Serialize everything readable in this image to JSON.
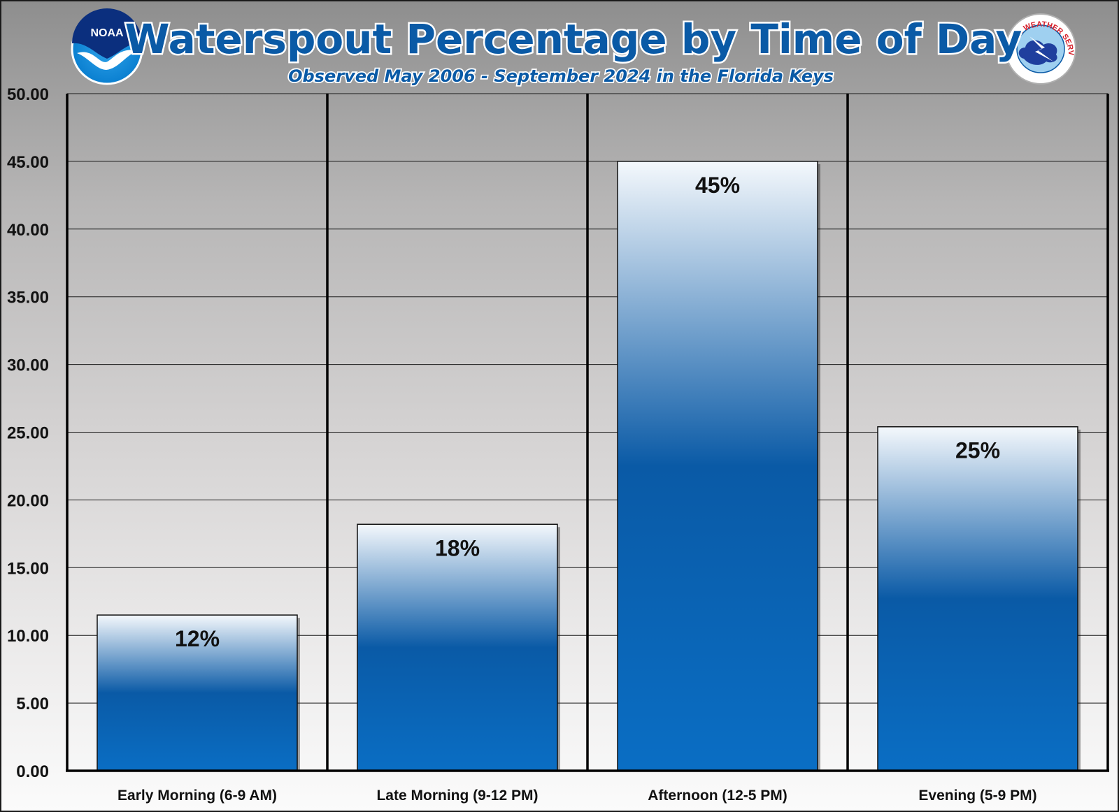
{
  "header": {
    "title": "Waterspout Percentage by Time of Day",
    "subtitle": "Observed May 2006 - September 2024 in the Florida Keys"
  },
  "logos": {
    "noaa": {
      "icon": "noaa-logo",
      "text": "NOAA",
      "color": "#0a5aa6"
    },
    "nws": {
      "icon": "nws-logo",
      "text": "NATIONAL WEATHER SERVICE",
      "color": "#d6202b"
    }
  },
  "colors": {
    "bar_top": "#f4f8fc",
    "bar_mid": "#0a5aa6",
    "bar_bottom": "#0a6ec4",
    "title": "#0a5aa6",
    "gridline": "#1a1a1a"
  },
  "chart_data": {
    "type": "bar",
    "title": "Waterspout Percentage by Time of Day",
    "subtitle": "Observed May 2006 - September 2024 in the Florida Keys",
    "categories": [
      "Early Morning (6-9 AM)",
      "Late Morning (9-12 PM)",
      "Afternoon (12-5 PM)",
      "Evening (5-9 PM)"
    ],
    "values": [
      11.5,
      18.2,
      45.0,
      25.4
    ],
    "data_labels": [
      "12%",
      "18%",
      "45%",
      "25%"
    ],
    "ylim": [
      0,
      50
    ],
    "yticks": [
      0,
      5,
      10,
      15,
      20,
      25,
      30,
      35,
      40,
      45,
      50
    ],
    "ytick_labels": [
      "0.00",
      "5.00",
      "10.00",
      "15.00",
      "20.00",
      "25.00",
      "30.00",
      "35.00",
      "40.00",
      "45.00",
      "50.00"
    ],
    "grid": true,
    "xlabel": "",
    "ylabel": ""
  }
}
